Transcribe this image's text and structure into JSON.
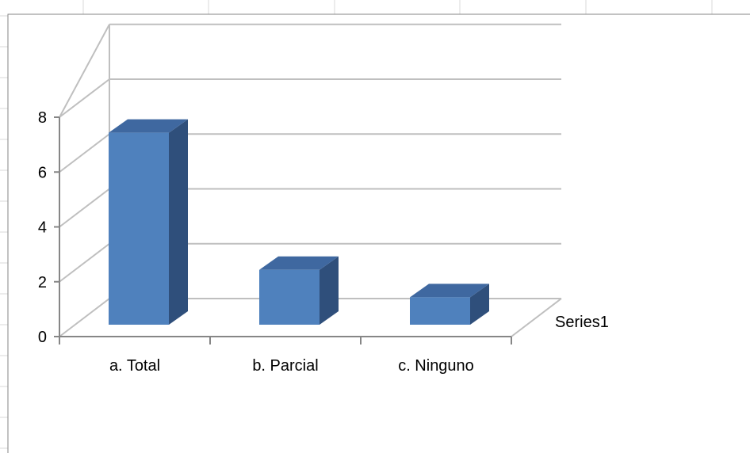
{
  "chart_data": {
    "type": "bar",
    "style": "3d-column",
    "categories": [
      "a. Total",
      "b. Parcial",
      "c. Ninguno"
    ],
    "series": [
      {
        "name": "Series1",
        "values": [
          7,
          2,
          1
        ]
      }
    ],
    "ylim": [
      0,
      8
    ],
    "yticks": [
      "0",
      "2",
      "4",
      "6",
      "8"
    ],
    "grid": true,
    "colors": {
      "bar_front": "#4f81bd",
      "bar_top": "#3f68a0",
      "bar_side": "#2f4f7b",
      "grid": "#bfbfbf",
      "axis": "#868686",
      "sheet_grid": "#d9d9d9"
    }
  }
}
